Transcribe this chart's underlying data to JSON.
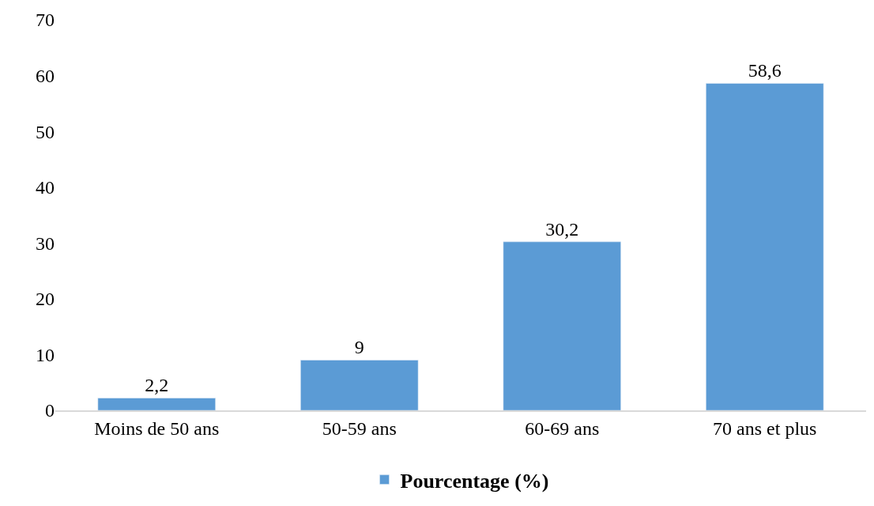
{
  "chart_data": {
    "type": "bar",
    "categories": [
      "Moins de 50 ans",
      "50-59 ans",
      "60-69 ans",
      "70 ans et plus"
    ],
    "series": [
      {
        "name": "Pourcentage (%)",
        "color": "#5b9bd5",
        "values": [
          2.2,
          9,
          30.2,
          58.6
        ],
        "value_labels": [
          "2,2",
          "9",
          "30,2",
          "58,6"
        ]
      }
    ],
    "ylim": [
      0,
      70
    ],
    "yticks": [
      0,
      10,
      20,
      30,
      40,
      50,
      60,
      70
    ],
    "legend": "bottom"
  }
}
